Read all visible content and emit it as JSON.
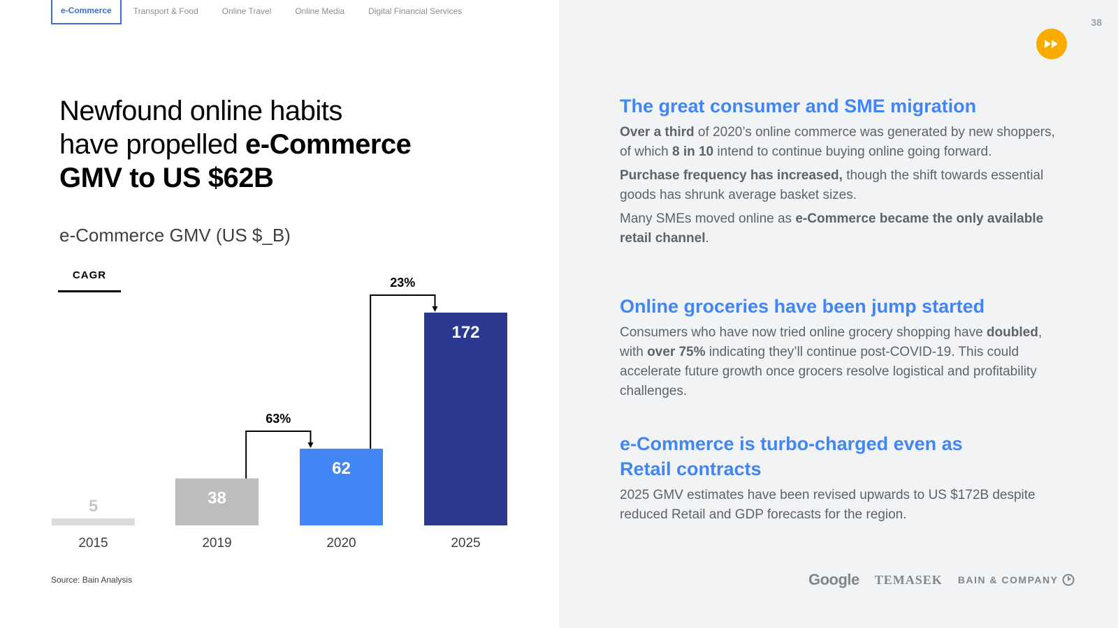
{
  "tabs": [
    {
      "label": "e-Commerce",
      "active": true
    },
    {
      "label": "Transport & Food",
      "active": false
    },
    {
      "label": "Online Travel",
      "active": false
    },
    {
      "label": "Online Media",
      "active": false
    },
    {
      "label": "Digital Financial Services",
      "active": false
    }
  ],
  "title": {
    "line1": "Newfound online habits",
    "line2_plain": "have propelled ",
    "line2_bold": "e-Commerce",
    "line3_bold": "GMV to US $62B"
  },
  "page_number": "38",
  "source": "Source: Bain Analysis",
  "chart_data": {
    "type": "bar",
    "title": "e-Commerce GMV (US $_B)",
    "categories": [
      "2015",
      "2019",
      "2020",
      "2025"
    ],
    "values": [
      5,
      38,
      62,
      172
    ],
    "colors": [
      "#dadce0",
      "#bdbdbd",
      "#4285f4",
      "#2b3990"
    ],
    "legend_label": "CAGR",
    "annotations": [
      {
        "from": "2019",
        "to": "2020",
        "label": "63%"
      },
      {
        "from": "2020",
        "to": "2025",
        "label": "23%"
      }
    ],
    "ylim": [
      0,
      172
    ]
  },
  "sections": [
    {
      "heading": "The great consumer and SME migration",
      "paragraphs": [
        [
          {
            "text": "Over a third",
            "bold": true
          },
          {
            "text": " of 2020’s online commerce was generated by new shoppers, of which ",
            "bold": false
          },
          {
            "text": "8 in 10",
            "bold": true
          },
          {
            "text": " intend to continue buying online going forward.",
            "bold": false
          }
        ],
        [
          {
            "text": "Purchase frequency has increased,",
            "bold": true
          },
          {
            "text": " though the shift towards essential goods has shrunk average basket sizes.",
            "bold": false
          }
        ],
        [
          {
            "text": "Many SMEs moved online as ",
            "bold": false
          },
          {
            "text": "e-Commerce became the only available retail channel",
            "bold": true
          },
          {
            "text": ".",
            "bold": false
          }
        ]
      ]
    },
    {
      "heading": "Online groceries have been jump started",
      "paragraphs": [
        [
          {
            "text": "Consumers who have now tried online grocery shopping have ",
            "bold": false
          },
          {
            "text": "doubled",
            "bold": true
          },
          {
            "text": ", with ",
            "bold": false
          },
          {
            "text": "over 75%",
            "bold": true
          },
          {
            "text": " indicating they’ll continue post-COVID-19. This could accelerate future growth once grocers resolve logistical and profitability challenges.",
            "bold": false
          }
        ]
      ]
    },
    {
      "heading": "e-Commerce is turbo-charged even as Retail contracts",
      "paragraphs": [
        [
          {
            "text": "2025 GMV estimates have been revised upwards to US $172B despite reduced Retail and GDP forecasts for the region.",
            "bold": false
          }
        ]
      ]
    }
  ],
  "logos": {
    "google": "Google",
    "temasek": "TEMASEK",
    "bain": "BAIN & COMPANY"
  },
  "colors": {
    "accent_blue": "#4285f4",
    "dark_blue": "#2b3990",
    "orange": "#f9ab00"
  },
  "icons": {
    "fast_forward": "fast-forward-icon",
    "bain_logo_mark": "bain-logo-mark-icon"
  }
}
